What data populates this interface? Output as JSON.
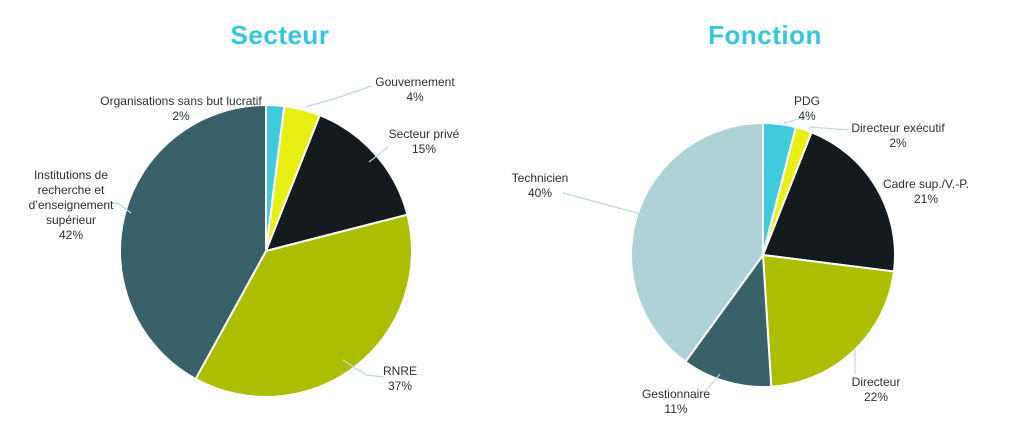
{
  "figure": {
    "background": "#ffffff",
    "label_text_color": "#2b2f31"
  },
  "leader_line_color": "#bcd8de",
  "chart_data": [
    {
      "type": "pie",
      "title": "Secteur",
      "title_color": "#35c6df",
      "start_angle_deg": 0,
      "direction": "clockwise",
      "slice_gap_color": "#ffffff",
      "slices": [
        {
          "label": "Organisations sans but lucratif",
          "value": 2,
          "pct": "2%",
          "color": "#3fcbdb"
        },
        {
          "label": "Gouvernement",
          "value": 4,
          "pct": "4%",
          "color": "#e7f012"
        },
        {
          "label": "Secteur privé",
          "value": 15,
          "pct": "15%",
          "color": "#141a1d"
        },
        {
          "label": "RNRE",
          "value": 37,
          "pct": "37%",
          "color": "#acbe00"
        },
        {
          "label": "Institutions de recherche et d’enseignement supérieur",
          "value": 42,
          "pct": "42%",
          "color": "#38616a"
        }
      ]
    },
    {
      "type": "pie",
      "title": "Fonction",
      "title_color": "#35c6df",
      "start_angle_deg": 0,
      "direction": "clockwise",
      "slice_gap_color": "#ffffff",
      "slices": [
        {
          "label": "PDG",
          "value": 4,
          "pct": "4%",
          "color": "#3fcbdb"
        },
        {
          "label": "Directeur exécutif",
          "value": 2,
          "pct": "2%",
          "color": "#e7f012"
        },
        {
          "label": "Cadre sup./V.-P.",
          "value": 21,
          "pct": "21%",
          "color": "#141a1d"
        },
        {
          "label": "Directeur",
          "value": 22,
          "pct": "22%",
          "color": "#acbe00"
        },
        {
          "label": "Gestionnaire",
          "value": 11,
          "pct": "11%",
          "color": "#38616a"
        },
        {
          "label": "Technicien",
          "value": 40,
          "pct": "40%",
          "color": "#afd2d6"
        }
      ]
    }
  ]
}
